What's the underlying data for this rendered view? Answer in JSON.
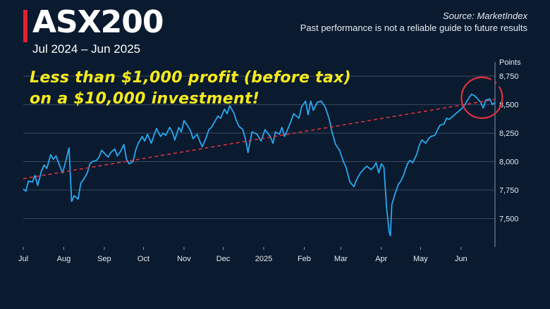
{
  "header": {
    "title": "ASX200",
    "subtitle": "Jul 2024 – Jun 2025",
    "source": "Source: MarketIndex",
    "disclaimer": "Past performance is not a reliable guide to future results",
    "accent_color": "#e0232e"
  },
  "annotation": {
    "line1": "Less than $1,000 profit (before tax)",
    "line2": "on a $10,000 investment!",
    "color": "#f5ea1c"
  },
  "chart_data": {
    "type": "line",
    "ylabel": "Points",
    "ylim": [
      7250,
      8800
    ],
    "yticks": [
      7500,
      7750,
      8000,
      8250,
      8500,
      8750
    ],
    "ytick_labels": [
      "7,500",
      "7,750",
      "8,000",
      "8,250",
      "8,500",
      "8,750"
    ],
    "grid": true,
    "xlim": [
      "2024-07-01",
      "2025-06-27"
    ],
    "xticks": [
      {
        "date": "2024-07-01",
        "label": "Jul"
      },
      {
        "date": "2024-08-01",
        "label": "Aug"
      },
      {
        "date": "2024-09-01",
        "label": "Sep"
      },
      {
        "date": "2024-10-01",
        "label": "Oct"
      },
      {
        "date": "2024-11-01",
        "label": "Nov"
      },
      {
        "date": "2024-12-01",
        "label": "Dec"
      },
      {
        "date": "2025-01-01",
        "label": "2025"
      },
      {
        "date": "2025-02-01",
        "label": "Feb"
      },
      {
        "date": "2025-03-01",
        "label": "Mar"
      },
      {
        "date": "2025-04-01",
        "label": "Apr"
      },
      {
        "date": "2025-05-01",
        "label": "May"
      },
      {
        "date": "2025-06-01",
        "label": "Jun"
      }
    ],
    "series": [
      {
        "color": "#29a8f0",
        "points": [
          [
            "2024-07-01",
            7760
          ],
          [
            "2024-07-03",
            7740
          ],
          [
            "2024-07-05",
            7830
          ],
          [
            "2024-07-08",
            7820
          ],
          [
            "2024-07-10",
            7880
          ],
          [
            "2024-07-12",
            7790
          ],
          [
            "2024-07-15",
            7920
          ],
          [
            "2024-07-17",
            7970
          ],
          [
            "2024-07-19",
            7940
          ],
          [
            "2024-07-22",
            8060
          ],
          [
            "2024-07-24",
            8020
          ],
          [
            "2024-07-26",
            8050
          ],
          [
            "2024-07-29",
            7960
          ],
          [
            "2024-07-31",
            7900
          ],
          [
            "2024-08-02",
            7980
          ],
          [
            "2024-08-05",
            8120
          ],
          [
            "2024-08-07",
            7650
          ],
          [
            "2024-08-09",
            7700
          ],
          [
            "2024-08-12",
            7670
          ],
          [
            "2024-08-14",
            7810
          ],
          [
            "2024-08-16",
            7840
          ],
          [
            "2024-08-19",
            7900
          ],
          [
            "2024-08-21",
            7980
          ],
          [
            "2024-08-23",
            8000
          ],
          [
            "2024-08-26",
            8010
          ],
          [
            "2024-08-28",
            8040
          ],
          [
            "2024-08-30",
            8100
          ],
          [
            "2024-09-02",
            8060
          ],
          [
            "2024-09-04",
            8040
          ],
          [
            "2024-09-06",
            8080
          ],
          [
            "2024-09-09",
            8110
          ],
          [
            "2024-09-11",
            8050
          ],
          [
            "2024-09-13",
            8080
          ],
          [
            "2024-09-16",
            8150
          ],
          [
            "2024-09-18",
            8020
          ],
          [
            "2024-09-20",
            7980
          ],
          [
            "2024-09-23",
            8000
          ],
          [
            "2024-09-25",
            8100
          ],
          [
            "2024-09-27",
            8160
          ],
          [
            "2024-09-30",
            8220
          ],
          [
            "2024-10-02",
            8180
          ],
          [
            "2024-10-04",
            8240
          ],
          [
            "2024-10-07",
            8160
          ],
          [
            "2024-10-09",
            8230
          ],
          [
            "2024-10-11",
            8290
          ],
          [
            "2024-10-14",
            8220
          ],
          [
            "2024-10-16",
            8250
          ],
          [
            "2024-10-18",
            8230
          ],
          [
            "2024-10-21",
            8300
          ],
          [
            "2024-10-23",
            8260
          ],
          [
            "2024-10-25",
            8190
          ],
          [
            "2024-10-28",
            8300
          ],
          [
            "2024-10-30",
            8260
          ],
          [
            "2024-11-01",
            8360
          ],
          [
            "2024-11-04",
            8310
          ],
          [
            "2024-11-06",
            8270
          ],
          [
            "2024-11-08",
            8200
          ],
          [
            "2024-11-11",
            8240
          ],
          [
            "2024-11-13",
            8180
          ],
          [
            "2024-11-15",
            8130
          ],
          [
            "2024-11-18",
            8210
          ],
          [
            "2024-11-20",
            8280
          ],
          [
            "2024-11-22",
            8300
          ],
          [
            "2024-11-25",
            8360
          ],
          [
            "2024-11-27",
            8400
          ],
          [
            "2024-11-29",
            8380
          ],
          [
            "2024-12-02",
            8460
          ],
          [
            "2024-12-04",
            8420
          ],
          [
            "2024-12-06",
            8490
          ],
          [
            "2024-12-09",
            8430
          ],
          [
            "2024-12-11",
            8360
          ],
          [
            "2024-12-13",
            8310
          ],
          [
            "2024-12-16",
            8280
          ],
          [
            "2024-12-18",
            8200
          ],
          [
            "2024-12-20",
            8080
          ],
          [
            "2024-12-23",
            8260
          ],
          [
            "2024-12-27",
            8240
          ],
          [
            "2024-12-30",
            8180
          ],
          [
            "2025-01-02",
            8280
          ],
          [
            "2025-01-06",
            8220
          ],
          [
            "2025-01-08",
            8160
          ],
          [
            "2025-01-10",
            8260
          ],
          [
            "2025-01-13",
            8240
          ],
          [
            "2025-01-15",
            8300
          ],
          [
            "2025-01-17",
            8220
          ],
          [
            "2025-01-20",
            8300
          ],
          [
            "2025-01-22",
            8360
          ],
          [
            "2025-01-24",
            8420
          ],
          [
            "2025-01-28",
            8380
          ],
          [
            "2025-01-30",
            8480
          ],
          [
            "2025-02-02",
            8530
          ],
          [
            "2025-02-04",
            8410
          ],
          [
            "2025-02-06",
            8530
          ],
          [
            "2025-02-08",
            8450
          ],
          [
            "2025-02-11",
            8520
          ],
          [
            "2025-02-14",
            8530
          ],
          [
            "2025-02-17",
            8480
          ],
          [
            "2025-02-20",
            8380
          ],
          [
            "2025-02-22",
            8270
          ],
          [
            "2025-02-25",
            8150
          ],
          [
            "2025-02-28",
            8100
          ],
          [
            "2025-03-03",
            8000
          ],
          [
            "2025-03-05",
            7950
          ],
          [
            "2025-03-08",
            7820
          ],
          [
            "2025-03-11",
            7780
          ],
          [
            "2025-03-13",
            7840
          ],
          [
            "2025-03-16",
            7900
          ],
          [
            "2025-03-19",
            7940
          ],
          [
            "2025-03-21",
            7960
          ],
          [
            "2025-03-24",
            7930
          ],
          [
            "2025-03-26",
            7950
          ],
          [
            "2025-03-28",
            7990
          ],
          [
            "2025-03-30",
            7900
          ],
          [
            "2025-04-01",
            7980
          ],
          [
            "2025-04-03",
            7950
          ],
          [
            "2025-04-05",
            7600
          ],
          [
            "2025-04-07",
            7380
          ],
          [
            "2025-04-08",
            7350
          ],
          [
            "2025-04-09",
            7620
          ],
          [
            "2025-04-11",
            7700
          ],
          [
            "2025-04-14",
            7800
          ],
          [
            "2025-04-16",
            7830
          ],
          [
            "2025-04-18",
            7880
          ],
          [
            "2025-04-21",
            7980
          ],
          [
            "2025-04-23",
            8010
          ],
          [
            "2025-04-25",
            7990
          ],
          [
            "2025-04-28",
            8060
          ],
          [
            "2025-04-30",
            8140
          ],
          [
            "2025-05-02",
            8190
          ],
          [
            "2025-05-05",
            8160
          ],
          [
            "2025-05-07",
            8200
          ],
          [
            "2025-05-09",
            8220
          ],
          [
            "2025-05-12",
            8230
          ],
          [
            "2025-05-14",
            8280
          ],
          [
            "2025-05-16",
            8320
          ],
          [
            "2025-05-19",
            8330
          ],
          [
            "2025-05-21",
            8380
          ],
          [
            "2025-05-23",
            8370
          ],
          [
            "2025-05-26",
            8400
          ],
          [
            "2025-05-28",
            8420
          ],
          [
            "2025-05-30",
            8440
          ],
          [
            "2025-06-02",
            8470
          ],
          [
            "2025-06-04",
            8500
          ],
          [
            "2025-06-06",
            8540
          ],
          [
            "2025-06-09",
            8590
          ],
          [
            "2025-06-11",
            8580
          ],
          [
            "2025-06-13",
            8560
          ],
          [
            "2025-06-16",
            8520
          ],
          [
            "2025-06-18",
            8470
          ],
          [
            "2025-06-20",
            8540
          ],
          [
            "2025-06-23",
            8550
          ],
          [
            "2025-06-25",
            8500
          ],
          [
            "2025-06-27",
            8520
          ]
        ]
      }
    ],
    "trendline": {
      "color": "#e0323c",
      "from": [
        "2024-07-01",
        7850
      ],
      "to": [
        "2025-06-27",
        8545
      ]
    },
    "highlight": {
      "color": "#e0323c",
      "center": [
        "2025-06-17",
        8560
      ],
      "description": "circle around recent highs"
    }
  }
}
